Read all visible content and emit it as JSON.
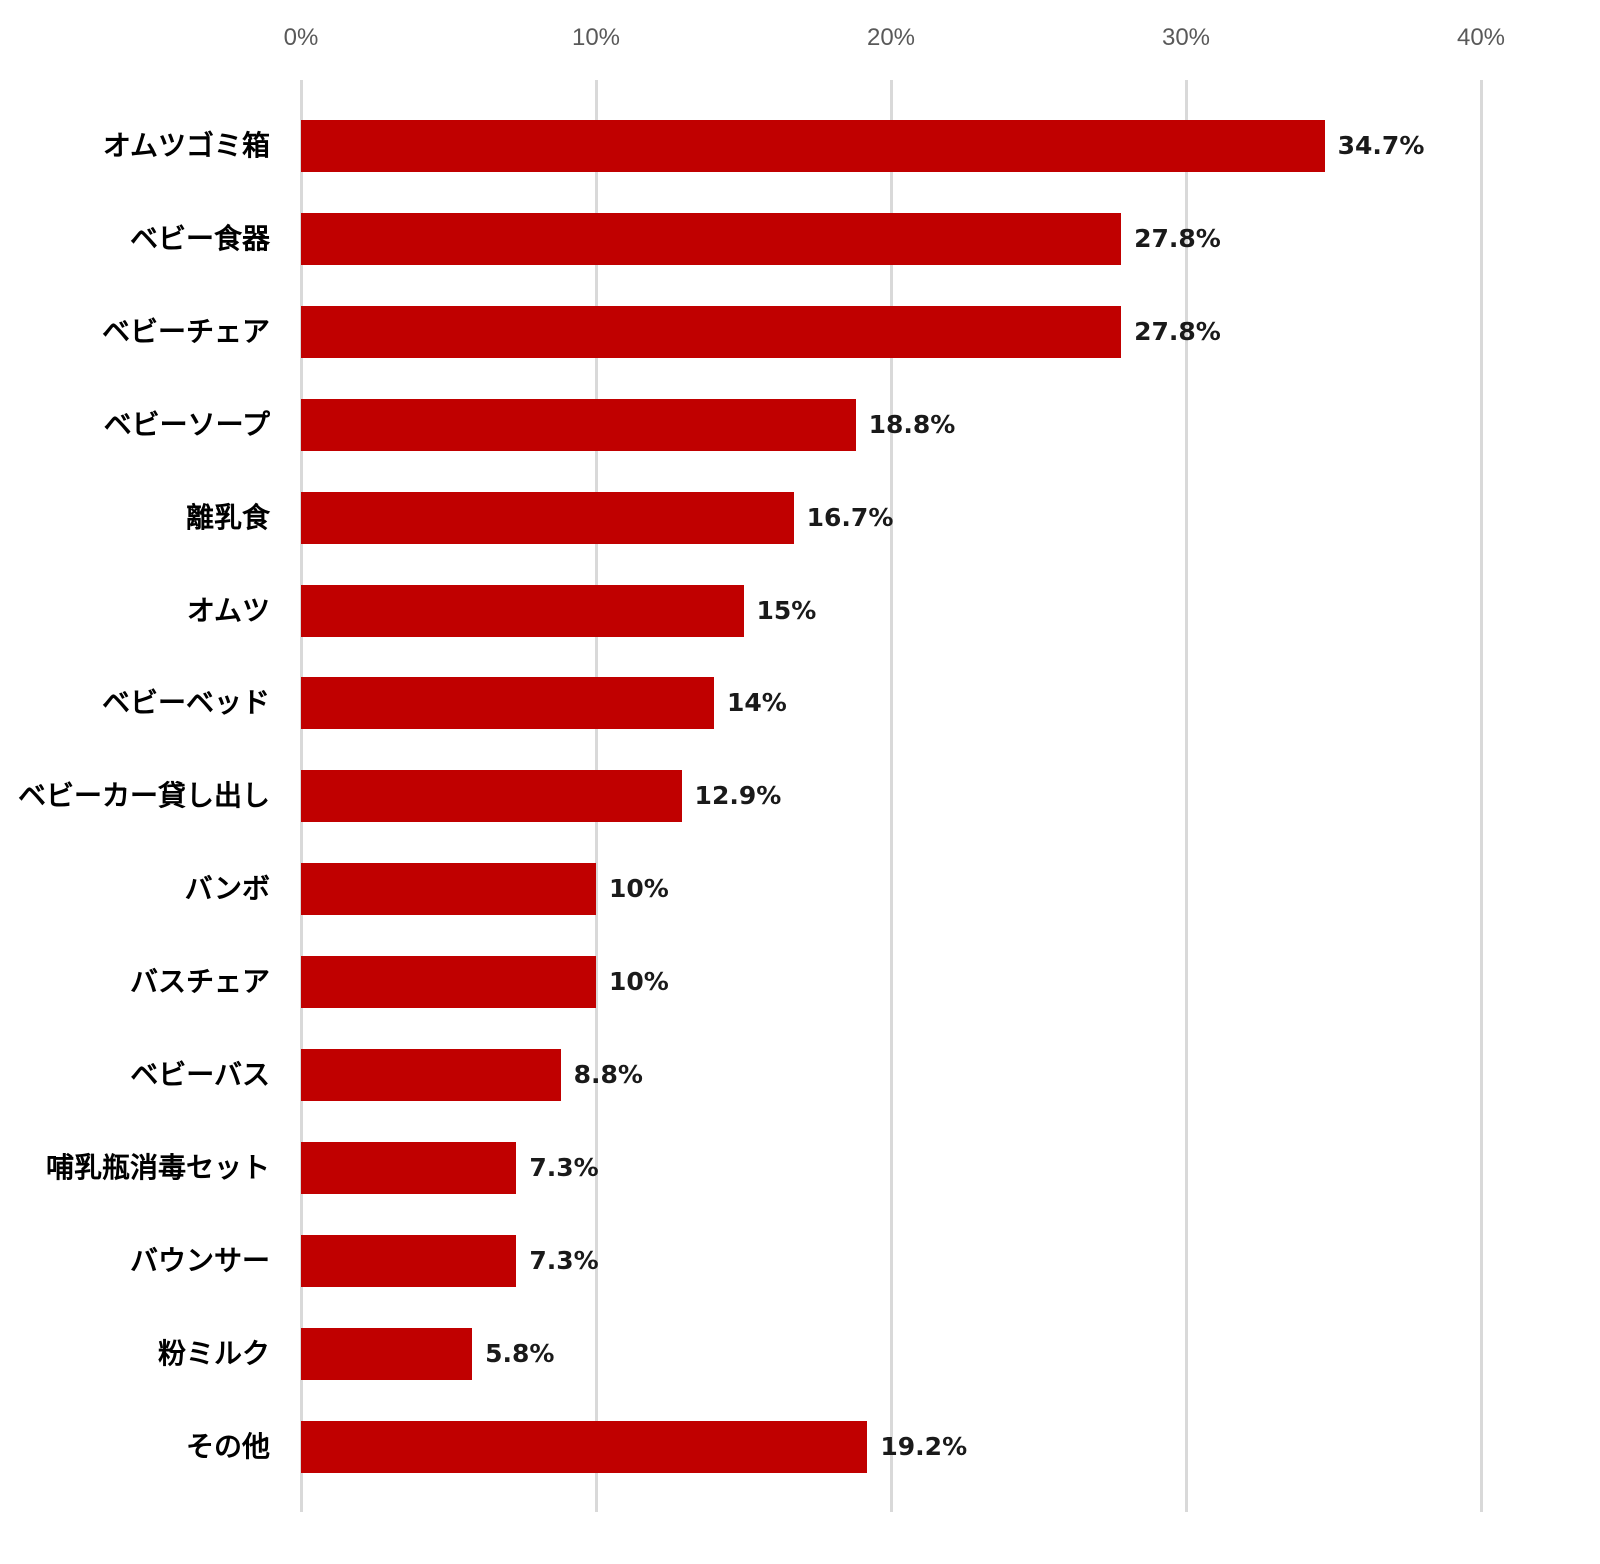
{
  "chart_data": {
    "type": "bar",
    "orientation": "horizontal",
    "title": "",
    "xlabel": "",
    "ylabel": "",
    "xlim": [
      0,
      40
    ],
    "x_ticks": [
      "0%",
      "10%",
      "20%",
      "30%",
      "40%"
    ],
    "x_tick_values": [
      0,
      10,
      20,
      30,
      40
    ],
    "grid": true,
    "legend": null,
    "bar_color": "#C00000",
    "categories": [
      "オムツゴミ箱",
      "ベビー食器",
      "ベビーチェア",
      "ベビーソープ",
      "離乳食",
      "オムツ",
      "ベビーベッド",
      "ベビーカー貸し出し",
      "バンボ",
      "バスチェア",
      "ベビーバス",
      "哺乳瓶消毒セット",
      "バウンサー",
      "粉ミルク",
      "その他"
    ],
    "values": [
      34.7,
      27.8,
      27.8,
      18.8,
      16.7,
      15,
      14,
      12.9,
      10,
      10,
      8.8,
      7.3,
      7.3,
      5.8,
      19.2
    ],
    "value_labels": [
      "34.7%",
      "27.8%",
      "27.8%",
      "18.8%",
      "16.7%",
      "15%",
      "14%",
      "12.9%",
      "10%",
      "10%",
      "8.8%",
      "7.3%",
      "7.3%",
      "5.8%",
      "19.2%"
    ]
  },
  "colors": {
    "bar": "#C00000",
    "gridline": "#d9d9d9",
    "tick_text": "#595959",
    "label_text": "#000000"
  }
}
